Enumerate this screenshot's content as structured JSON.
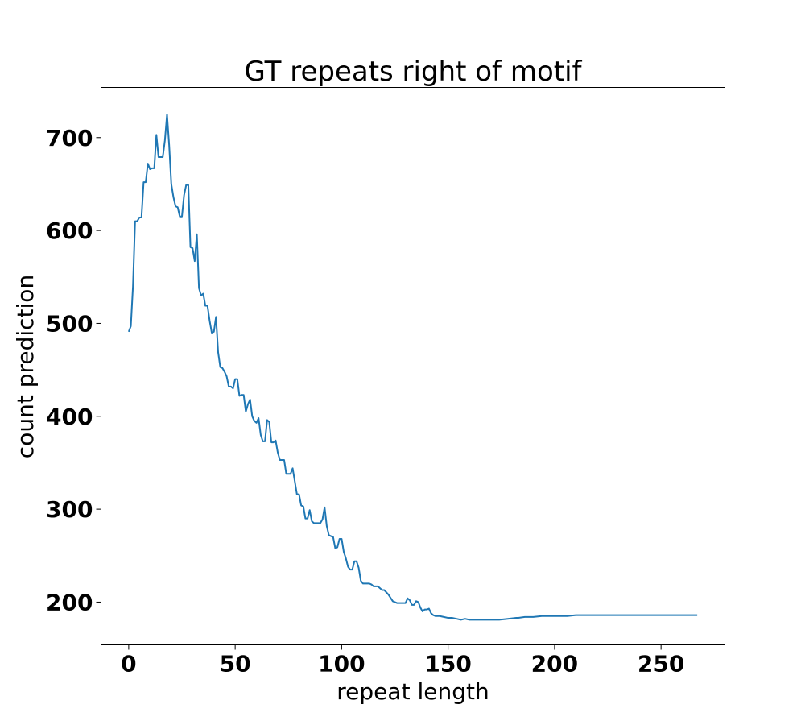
{
  "chart_data": {
    "type": "line",
    "title": "GT repeats right of motif",
    "xlabel": "repeat length",
    "ylabel": "count prediction",
    "xlim": [
      -13,
      280
    ],
    "ylim": [
      154,
      754
    ],
    "xticks": [
      0,
      50,
      100,
      150,
      200,
      250
    ],
    "yticks": [
      200,
      300,
      400,
      500,
      600,
      700
    ],
    "grid": false,
    "legend": "none",
    "color": "#1f77b4",
    "series": [
      {
        "x": [
          0,
          1,
          2,
          3,
          4,
          5,
          6,
          7,
          8,
          9,
          10,
          11,
          12,
          13,
          14,
          15,
          16,
          17,
          18,
          19,
          20,
          21,
          22,
          23,
          24,
          25,
          26,
          27,
          28,
          29,
          30,
          31,
          32,
          33,
          34,
          35,
          36,
          37,
          38,
          39,
          40,
          41,
          42,
          43,
          44,
          45,
          46,
          47,
          48,
          49,
          50,
          51,
          52,
          53,
          54,
          55,
          56,
          57,
          58,
          59,
          60,
          61,
          62,
          63,
          64,
          65,
          66,
          67,
          68,
          69,
          70,
          71,
          72,
          73,
          74,
          75,
          76,
          77,
          78,
          79,
          80,
          81,
          82,
          83,
          84,
          85,
          86,
          87,
          88,
          89,
          90,
          91,
          92,
          93,
          94,
          95,
          96,
          97,
          98,
          99,
          100,
          101,
          102,
          103,
          104,
          105,
          106,
          107,
          108,
          109,
          110,
          111,
          112,
          113,
          114,
          115,
          116,
          117,
          118,
          119,
          120,
          122,
          124,
          126,
          128,
          130,
          131,
          132,
          133,
          134,
          135,
          136,
          137,
          138,
          139,
          140,
          141,
          142,
          143,
          144,
          145,
          146,
          148,
          150,
          152,
          154,
          156,
          158,
          160,
          162,
          164,
          166,
          170,
          174,
          178,
          182,
          183,
          186,
          190,
          194,
          198,
          202,
          206,
          210,
          214,
          218,
          222,
          226,
          230,
          234,
          238,
          242,
          246,
          250,
          254,
          258,
          262,
          267
        ],
        "y": [
          491,
          497,
          540,
          610,
          610,
          614,
          614,
          652,
          652,
          672,
          666,
          667,
          667,
          703,
          679,
          679,
          679,
          697,
          725,
          692,
          650,
          636,
          626,
          625,
          615,
          615,
          638,
          649,
          649,
          582,
          581,
          567,
          596,
          538,
          530,
          532,
          519,
          519,
          503,
          490,
          491,
          507,
          469,
          453,
          452,
          448,
          443,
          432,
          432,
          430,
          440,
          440,
          422,
          423,
          423,
          405,
          413,
          418,
          400,
          395,
          393,
          398,
          380,
          373,
          373,
          396,
          394,
          372,
          372,
          374,
          361,
          353,
          353,
          353,
          338,
          338,
          338,
          344,
          330,
          316,
          316,
          304,
          303,
          290,
          290,
          299,
          287,
          285,
          285,
          285,
          285,
          289,
          302,
          282,
          272,
          271,
          270,
          258,
          259,
          268,
          268,
          254,
          247,
          238,
          235,
          235,
          244,
          244,
          237,
          223,
          220,
          220,
          220,
          220,
          219,
          217,
          217,
          217,
          215,
          213,
          213,
          208,
          201,
          199,
          199,
          199,
          204,
          202,
          197,
          197,
          201,
          200,
          194,
          190,
          192,
          192,
          193,
          188,
          186,
          185,
          185,
          185,
          184,
          183,
          183,
          182,
          181,
          182,
          181,
          181,
          181,
          181,
          181,
          181,
          182,
          183,
          183,
          184,
          184,
          185,
          185,
          185,
          185,
          186,
          186,
          186,
          186,
          186,
          186,
          186,
          186,
          186,
          186,
          186,
          186,
          186,
          186,
          186
        ]
      }
    ]
  }
}
